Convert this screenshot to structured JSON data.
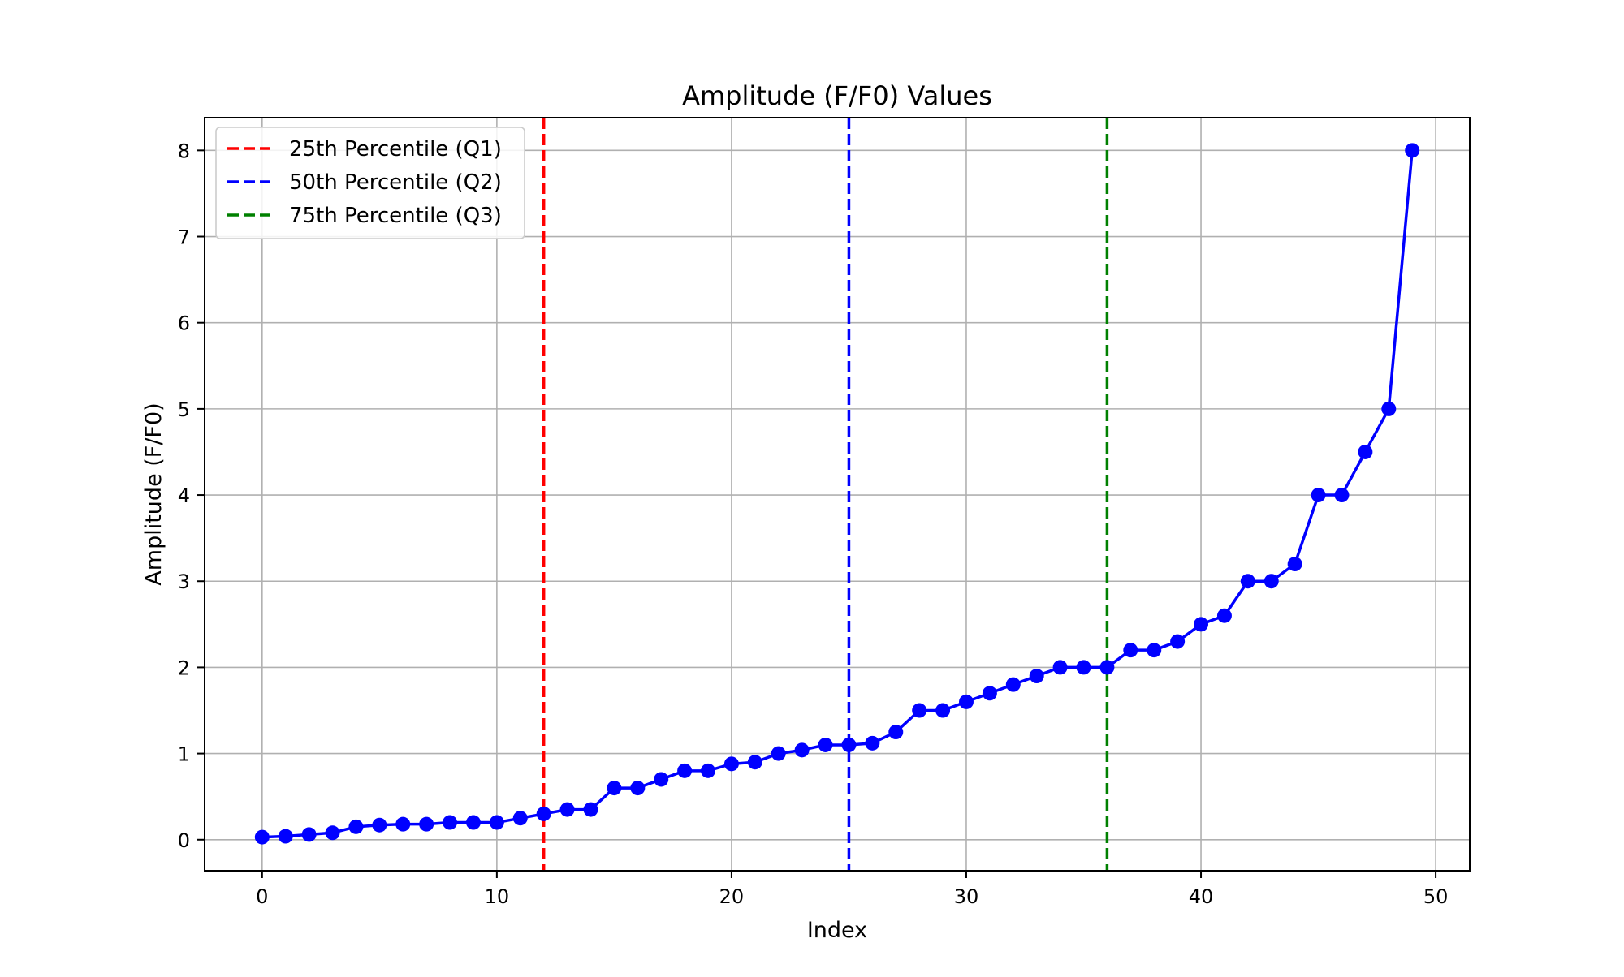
{
  "chart_data": {
    "type": "line",
    "title": "Amplitude (F/F0) Values",
    "xlabel": "Index",
    "ylabel": "Amplitude (F/F0)",
    "xlim": [
      -2.45,
      51.45
    ],
    "ylim": [
      -0.36,
      8.38
    ],
    "xticks": [
      0,
      10,
      20,
      30,
      40,
      50
    ],
    "yticks": [
      0,
      1,
      2,
      3,
      4,
      5,
      6,
      7,
      8
    ],
    "grid": true,
    "legend_position": "upper left",
    "series": [
      {
        "color": "#0000ff",
        "marker": "circle",
        "x": [
          0,
          1,
          2,
          3,
          4,
          5,
          6,
          7,
          8,
          9,
          10,
          11,
          12,
          13,
          14,
          15,
          16,
          17,
          18,
          19,
          20,
          21,
          22,
          23,
          24,
          25,
          26,
          27,
          28,
          29,
          30,
          31,
          32,
          33,
          34,
          35,
          36,
          37,
          38,
          39,
          40,
          41,
          42,
          43,
          44,
          45,
          46,
          47,
          48,
          49
        ],
        "y": [
          0.03,
          0.04,
          0.06,
          0.08,
          0.15,
          0.17,
          0.18,
          0.18,
          0.2,
          0.2,
          0.2,
          0.25,
          0.3,
          0.35,
          0.35,
          0.6,
          0.6,
          0.7,
          0.8,
          0.8,
          0.88,
          0.9,
          1.0,
          1.04,
          1.1,
          1.1,
          1.12,
          1.25,
          1.5,
          1.5,
          1.6,
          1.7,
          1.8,
          1.9,
          2.0,
          2.0,
          2.0,
          2.2,
          2.2,
          2.3,
          2.5,
          2.6,
          3.0,
          3.0,
          3.2,
          4.0,
          4.0,
          4.5,
          5.0,
          8.0
        ]
      }
    ],
    "vlines": [
      {
        "name": "25th Percentile (Q1)",
        "x": 12,
        "color": "#ff0000",
        "style": "dashed"
      },
      {
        "name": "50th Percentile (Q2)",
        "x": 25,
        "color": "#0000ff",
        "style": "dashed"
      },
      {
        "name": "75th Percentile (Q3)",
        "x": 36,
        "color": "#008000",
        "style": "dashed"
      }
    ]
  }
}
